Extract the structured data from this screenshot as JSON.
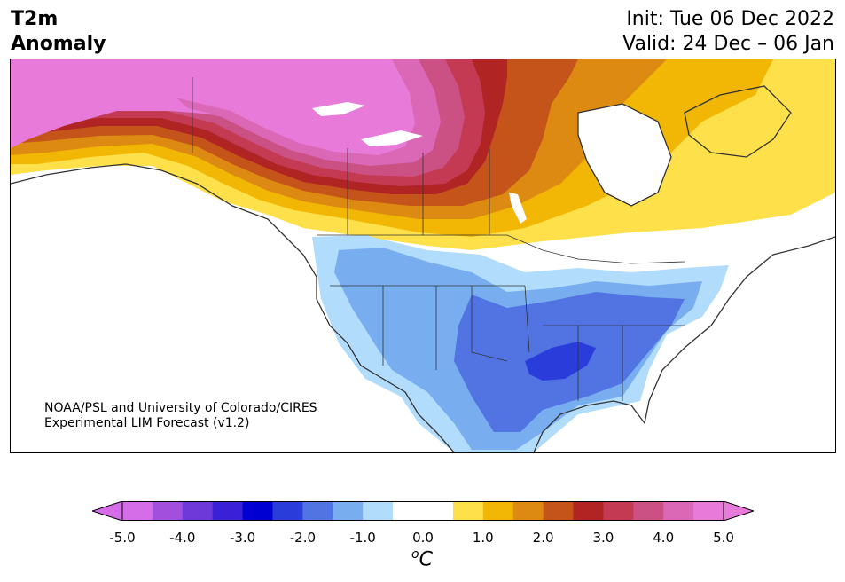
{
  "header": {
    "title_line1": "T2m",
    "title_line2": "Anomaly",
    "init": "Init: Tue 06 Dec 2022",
    "valid": "Valid: 24 Dec – 06 Jan"
  },
  "credit": {
    "line1": "NOAA/PSL and University of Colorado/CIRES",
    "line2": "Experimental LIM Forecast (v1.2)"
  },
  "colorbar": {
    "unit_symbol": "o",
    "unit_letter": "C",
    "ticks": [
      "-5.0",
      "-4.0",
      "-3.0",
      "-2.0",
      "-1.0",
      "0.0",
      "1.0",
      "2.0",
      "3.0",
      "4.0",
      "5.0"
    ],
    "colors": [
      "#d56de8",
      "#a24fde",
      "#6e39d9",
      "#3a20d6",
      "#0000d2",
      "#2a3ddb",
      "#5274e3",
      "#78aef0",
      "#b1dcfb",
      "#ffffff",
      "#ffffff",
      "#fee04a",
      "#f2b704",
      "#dd8a12",
      "#c5541a",
      "#b02424",
      "#c33a52",
      "#cb5084",
      "#da68b7",
      "#e87ad9"
    ],
    "under_color": "#d56de8",
    "over_color": "#e87ad9"
  },
  "map": {
    "colors": {
      "pink": "#e87ad9",
      "magenta2": "#da68b7",
      "rose": "#cb5084",
      "crimson": "#c33a52",
      "red": "#b02424",
      "burnt": "#c5541a",
      "orange": "#dd8a12",
      "gold": "#f2b704",
      "yellow": "#fee04a",
      "lightblue": "#b1dcfb",
      "blue1": "#78aef0",
      "blue2": "#5274e3",
      "blue3": "#2a3ddb",
      "coast": "#333333"
    }
  }
}
